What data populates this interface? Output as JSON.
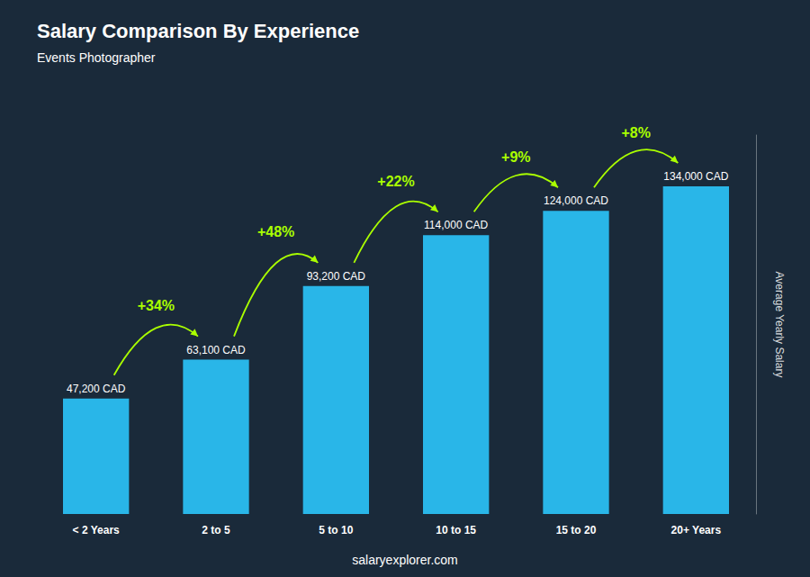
{
  "chart_data": {
    "type": "bar",
    "title": "Salary Comparison By Experience",
    "subtitle": "Events Photographer",
    "ylabel": "Average Yearly Salary",
    "footer": "salaryexplorer.com",
    "categories": [
      "< 2 Years",
      "2 to 5",
      "5 to 10",
      "10 to 15",
      "15 to 20",
      "20+ Years"
    ],
    "values": [
      47200,
      63100,
      93200,
      114000,
      124000,
      134000
    ],
    "value_labels": [
      "47,200 CAD",
      "63,100 CAD",
      "93,200 CAD",
      "114,000 CAD",
      "124,000 CAD",
      "134,000 CAD"
    ],
    "data_labels": true,
    "annotations": [
      "+34%",
      "+48%",
      "+22%",
      "+9%",
      "+8%"
    ],
    "color": "#29b6e8",
    "ylim": [
      0,
      155000
    ],
    "grid": false,
    "tick_labels": "x"
  }
}
